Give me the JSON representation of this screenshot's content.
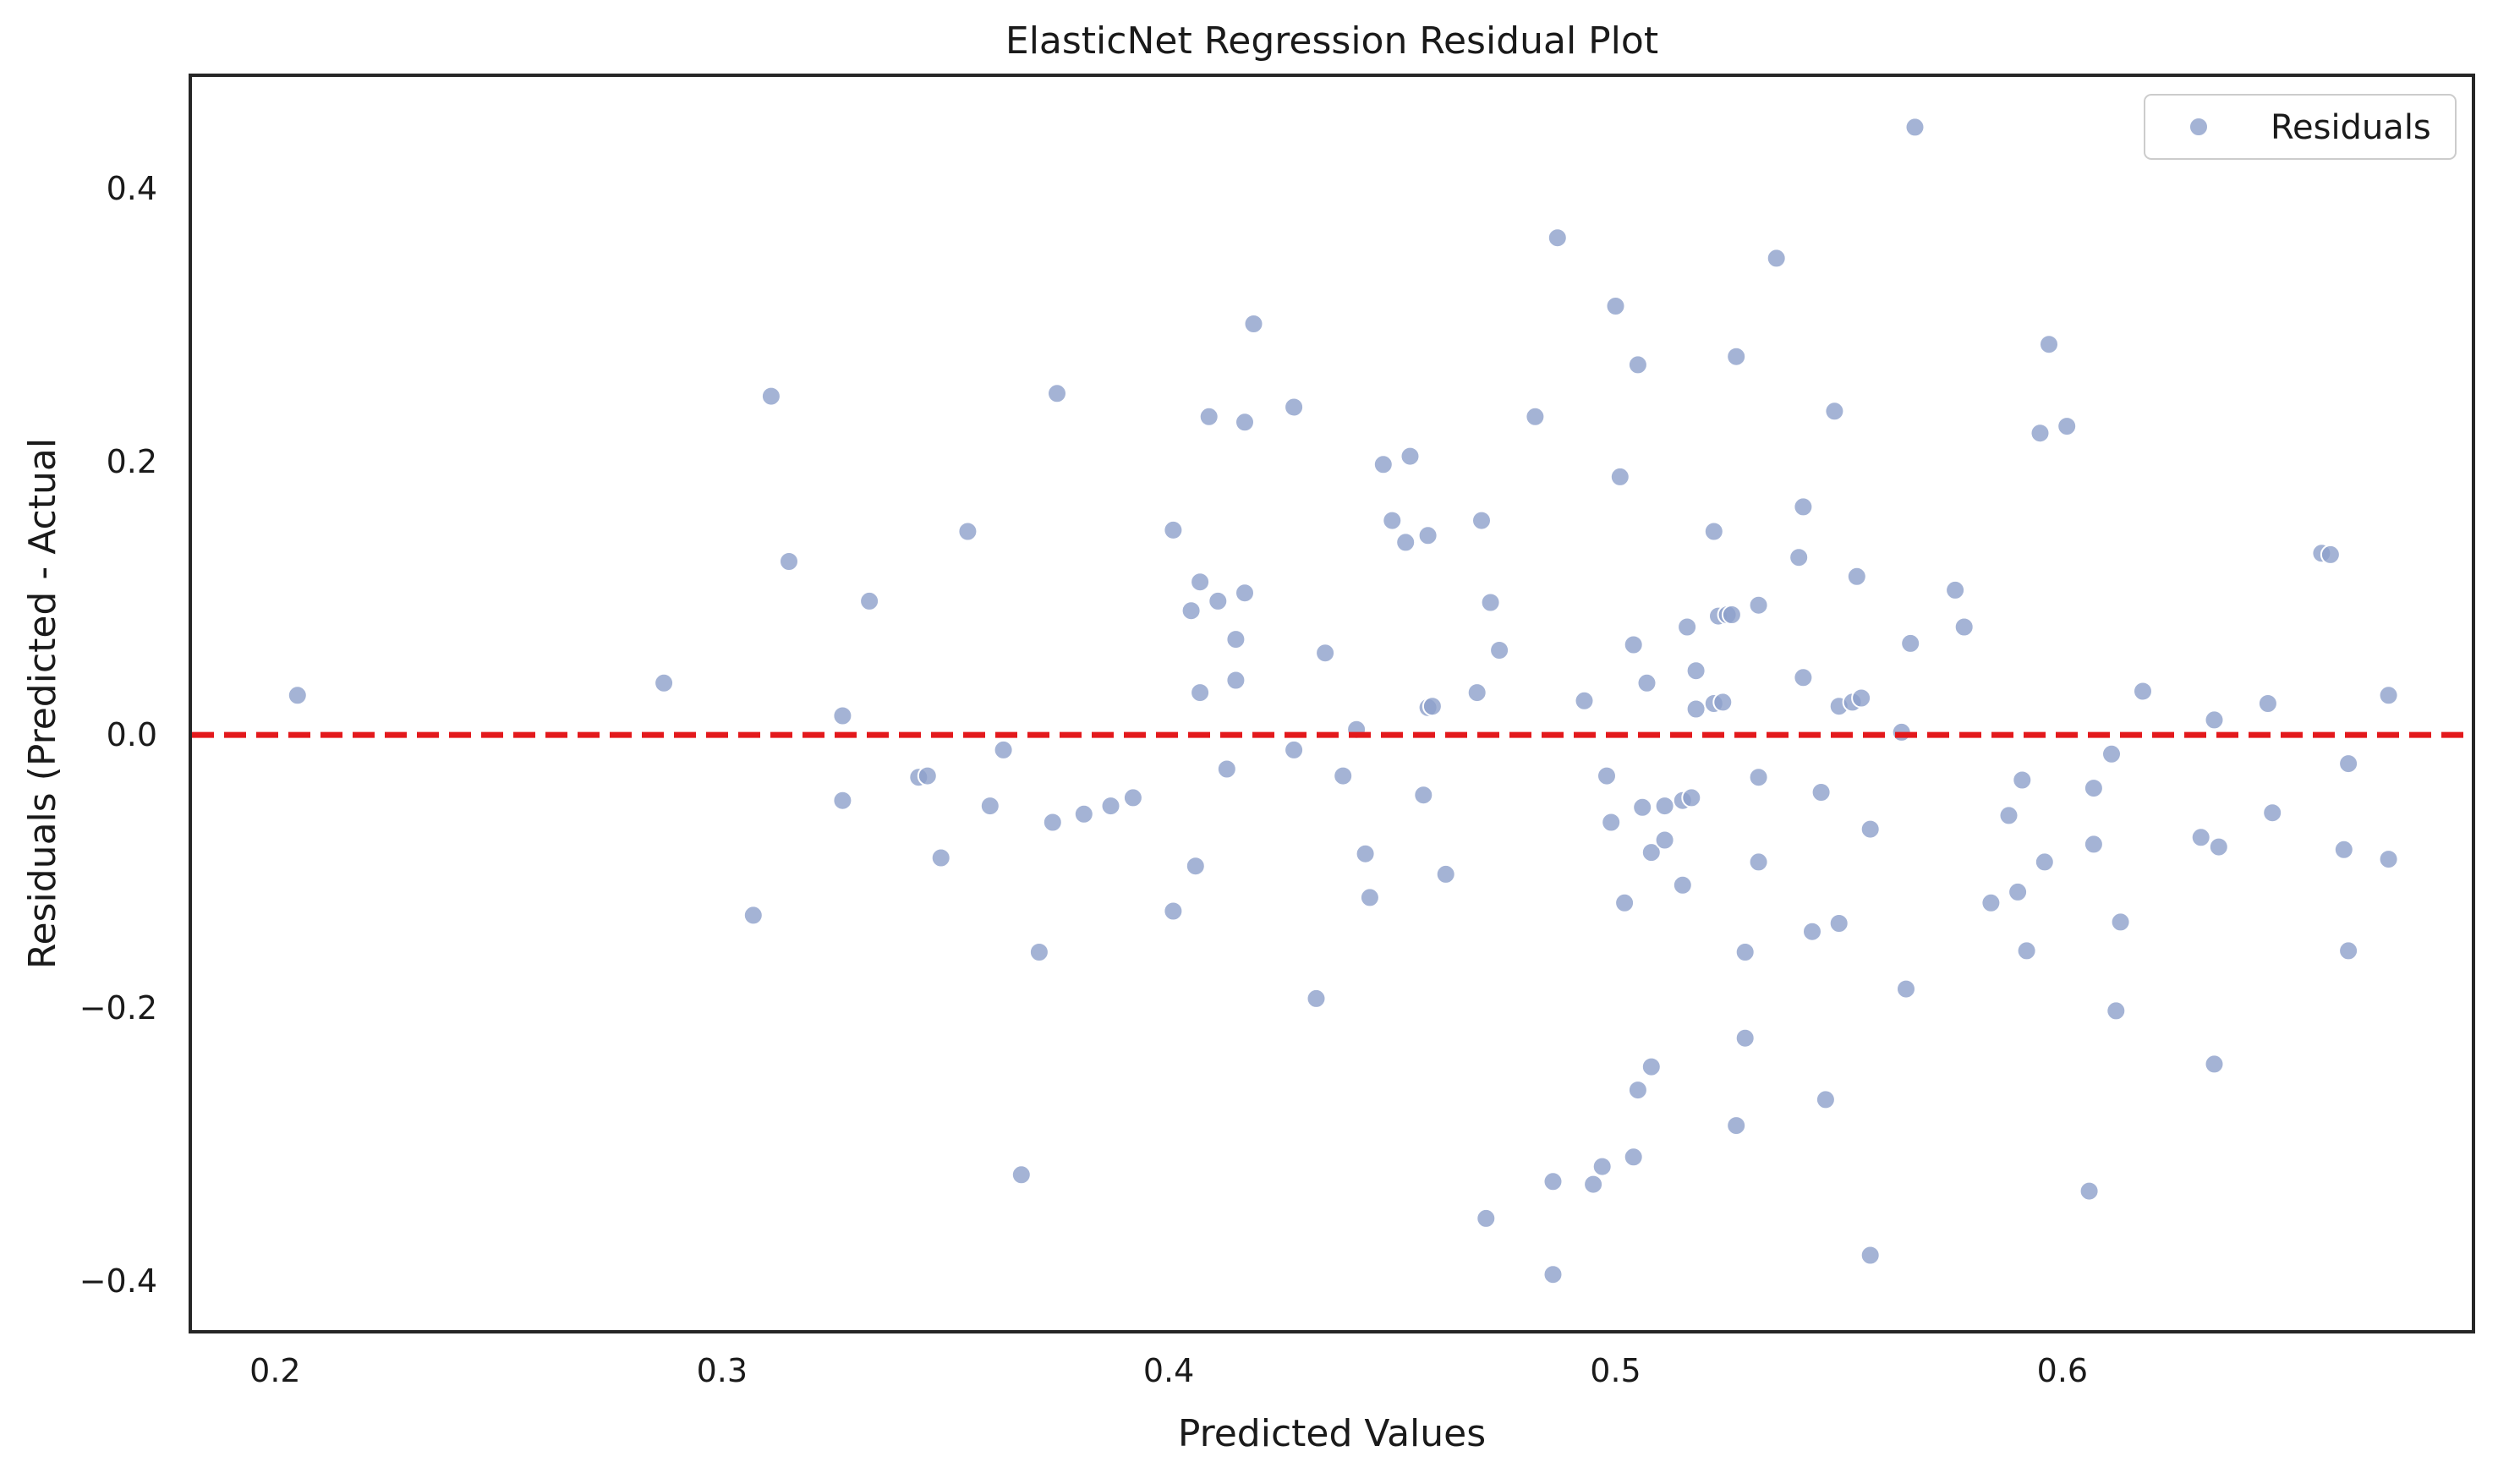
{
  "chart_data": {
    "type": "scatter",
    "title": "ElasticNet Regression Residual Plot",
    "xlabel": "Predicted Values",
    "ylabel": "Residuals (Predicted - Actual",
    "xlim": [
      0.181,
      0.692
    ],
    "ylim": [
      -0.437,
      0.483
    ],
    "xticks": [
      0.2,
      0.3,
      0.4,
      0.5,
      0.6
    ],
    "xtick_labels": [
      "0.2",
      "0.3",
      "0.4",
      "0.5",
      "0.6"
    ],
    "yticks": [
      -0.4,
      -0.2,
      0.0,
      0.2,
      0.4
    ],
    "ytick_labels": [
      "−0.4",
      "−0.2",
      "0.0",
      "0.2",
      "0.4"
    ],
    "grid": false,
    "legend": {
      "position": "top-right",
      "entries": [
        "Residuals"
      ]
    },
    "reference_line": {
      "y": 0.0,
      "style": "dashed",
      "color": "#e3191c"
    },
    "marker_color": "#8da0cb",
    "marker_edge_color": "#ffffff",
    "series": [
      {
        "name": "Residuals",
        "points": [
          [
            0.205,
            0.029
          ],
          [
            0.287,
            0.038
          ],
          [
            0.307,
            -0.132
          ],
          [
            0.311,
            0.248
          ],
          [
            0.315,
            0.127
          ],
          [
            0.327,
            -0.048
          ],
          [
            0.327,
            0.014
          ],
          [
            0.333,
            0.098
          ],
          [
            0.344,
            -0.031
          ],
          [
            0.346,
            -0.03
          ],
          [
            0.349,
            -0.09
          ],
          [
            0.355,
            0.149
          ],
          [
            0.36,
            -0.052
          ],
          [
            0.363,
            -0.011
          ],
          [
            0.367,
            -0.322
          ],
          [
            0.371,
            -0.159
          ],
          [
            0.374,
            -0.064
          ],
          [
            0.375,
            0.25
          ],
          [
            0.381,
            -0.058
          ],
          [
            0.387,
            -0.052
          ],
          [
            0.392,
            -0.046
          ],
          [
            0.401,
            0.15
          ],
          [
            0.401,
            -0.129
          ],
          [
            0.405,
            0.091
          ],
          [
            0.406,
            -0.096
          ],
          [
            0.407,
            0.031
          ],
          [
            0.407,
            0.112
          ],
          [
            0.409,
            0.233
          ],
          [
            0.411,
            0.098
          ],
          [
            0.413,
            -0.025
          ],
          [
            0.415,
            0.07
          ],
          [
            0.415,
            0.04
          ],
          [
            0.417,
            0.104
          ],
          [
            0.417,
            0.229
          ],
          [
            0.419,
            0.301
          ],
          [
            0.428,
            -0.011
          ],
          [
            0.428,
            0.24
          ],
          [
            0.433,
            -0.193
          ],
          [
            0.435,
            0.06
          ],
          [
            0.439,
            -0.03
          ],
          [
            0.442,
            0.004
          ],
          [
            0.444,
            -0.087
          ],
          [
            0.445,
            -0.119
          ],
          [
            0.448,
            0.198
          ],
          [
            0.45,
            0.157
          ],
          [
            0.453,
            0.141
          ],
          [
            0.454,
            0.204
          ],
          [
            0.457,
            -0.044
          ],
          [
            0.458,
            0.02
          ],
          [
            0.458,
            0.146
          ],
          [
            0.459,
            0.021
          ],
          [
            0.462,
            -0.102
          ],
          [
            0.469,
            0.031
          ],
          [
            0.47,
            0.157
          ],
          [
            0.471,
            -0.354
          ],
          [
            0.472,
            0.097
          ],
          [
            0.474,
            0.062
          ],
          [
            0.482,
            0.233
          ],
          [
            0.486,
            -0.395
          ],
          [
            0.486,
            -0.327
          ],
          [
            0.487,
            0.364
          ],
          [
            0.493,
            0.025
          ],
          [
            0.495,
            -0.329
          ],
          [
            0.497,
            -0.316
          ],
          [
            0.498,
            -0.03
          ],
          [
            0.499,
            -0.064
          ],
          [
            0.5,
            0.314
          ],
          [
            0.501,
            0.189
          ],
          [
            0.502,
            -0.123
          ],
          [
            0.504,
            0.066
          ],
          [
            0.504,
            -0.309
          ],
          [
            0.505,
            0.271
          ],
          [
            0.505,
            -0.26
          ],
          [
            0.506,
            -0.053
          ],
          [
            0.507,
            0.038
          ],
          [
            0.508,
            -0.243
          ],
          [
            0.508,
            -0.086
          ],
          [
            0.511,
            -0.052
          ],
          [
            0.511,
            -0.077
          ],
          [
            0.515,
            -0.11
          ],
          [
            0.515,
            -0.048
          ],
          [
            0.516,
            0.079
          ],
          [
            0.517,
            -0.046
          ],
          [
            0.518,
            0.047
          ],
          [
            0.518,
            0.019
          ],
          [
            0.522,
            0.023
          ],
          [
            0.522,
            0.149
          ],
          [
            0.523,
            0.087
          ],
          [
            0.524,
            0.024
          ],
          [
            0.525,
            0.088
          ],
          [
            0.526,
            0.088
          ],
          [
            0.527,
            -0.286
          ],
          [
            0.527,
            0.277
          ],
          [
            0.529,
            -0.159
          ],
          [
            0.529,
            -0.222
          ],
          [
            0.532,
            -0.031
          ],
          [
            0.532,
            -0.093
          ],
          [
            0.532,
            0.095
          ],
          [
            0.536,
            0.349
          ],
          [
            0.541,
            0.13
          ],
          [
            0.542,
            0.042
          ],
          [
            0.542,
            0.167
          ],
          [
            0.544,
            -0.144
          ],
          [
            0.546,
            -0.042
          ],
          [
            0.547,
            -0.267
          ],
          [
            0.549,
            0.237
          ],
          [
            0.55,
            0.021
          ],
          [
            0.55,
            -0.138
          ],
          [
            0.553,
            0.024
          ],
          [
            0.554,
            0.116
          ],
          [
            0.555,
            0.027
          ],
          [
            0.557,
            -0.069
          ],
          [
            0.557,
            -0.381
          ],
          [
            0.564,
            0.002
          ],
          [
            0.565,
            -0.186
          ],
          [
            0.566,
            0.067
          ],
          [
            0.567,
            0.445
          ],
          [
            0.576,
            0.106
          ],
          [
            0.578,
            0.079
          ],
          [
            0.584,
            -0.123
          ],
          [
            0.588,
            -0.059
          ],
          [
            0.59,
            -0.115
          ],
          [
            0.591,
            -0.033
          ],
          [
            0.592,
            -0.158
          ],
          [
            0.595,
            0.221
          ],
          [
            0.596,
            -0.093
          ],
          [
            0.597,
            0.286
          ],
          [
            0.601,
            0.226
          ],
          [
            0.606,
            -0.334
          ],
          [
            0.607,
            -0.039
          ],
          [
            0.607,
            -0.08
          ],
          [
            0.611,
            -0.014
          ],
          [
            0.612,
            -0.202
          ],
          [
            0.613,
            -0.137
          ],
          [
            0.618,
            0.032
          ],
          [
            0.631,
            -0.075
          ],
          [
            0.634,
            -0.241
          ],
          [
            0.634,
            0.011
          ],
          [
            0.635,
            -0.082
          ],
          [
            0.646,
            0.023
          ],
          [
            0.647,
            -0.057
          ],
          [
            0.658,
            0.133
          ],
          [
            0.66,
            0.132
          ],
          [
            0.663,
            -0.084
          ],
          [
            0.664,
            -0.158
          ],
          [
            0.664,
            -0.021
          ],
          [
            0.673,
            0.029
          ],
          [
            0.673,
            -0.091
          ]
        ]
      }
    ]
  }
}
